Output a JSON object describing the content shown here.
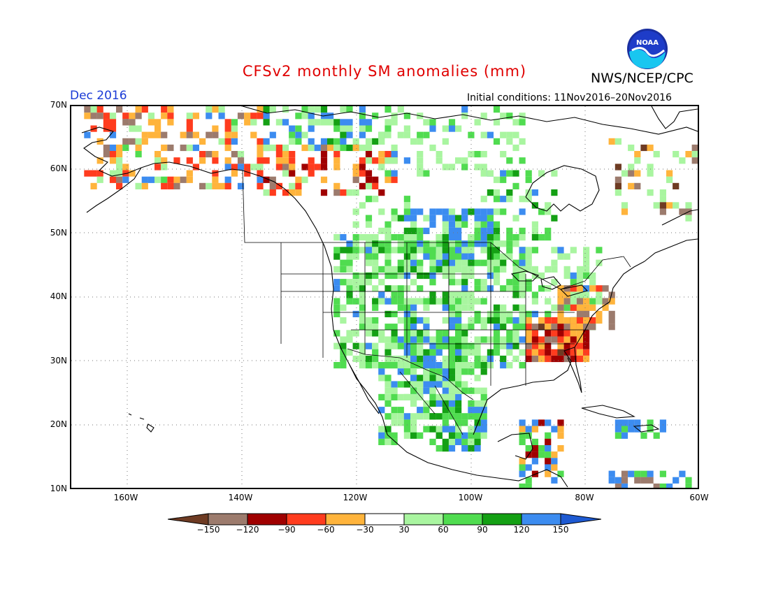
{
  "header": {
    "title": "CFSv2 monthly SM anomalies (mm)",
    "agency": "NWS/NCEP/CPC",
    "month": "Dec 2016",
    "initial_conditions": "Initial conditions: 11Nov2016–20Nov2016",
    "logo_text": "NOAA"
  },
  "axes": {
    "y_ticks": [
      "70N",
      "60N",
      "50N",
      "40N",
      "30N",
      "20N",
      "10N"
    ],
    "x_ticks": [
      "160W",
      "140W",
      "120W",
      "100W",
      "80W",
      "60W"
    ]
  },
  "colorbar": {
    "labels": [
      "−150",
      "−120",
      "−90",
      "−60",
      "−30",
      "30",
      "60",
      "90",
      "120",
      "150"
    ],
    "colors": [
      "#6e3b23",
      "#9c7b6d",
      "#a00000",
      "#ff3c1e",
      "#ffb43c",
      "#ffffff",
      "#a9f5a0",
      "#50dc50",
      "#14a014",
      "#3c8cf0",
      "#1e5ad2"
    ]
  },
  "colors": {
    "brown": "#6e3b23",
    "taupe": "#9c7b6d",
    "darkred": "#a00000",
    "red": "#ff3c1e",
    "orange": "#ffb43c",
    "lightgreen": "#a9f5a0",
    "green": "#50dc50",
    "darkgreen": "#14a014",
    "blue": "#3c8cf0",
    "title_red": "#e00000",
    "month_blue": "#1a3ad6"
  }
}
